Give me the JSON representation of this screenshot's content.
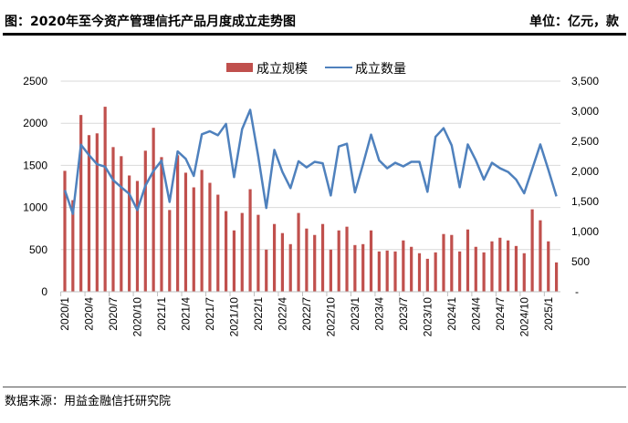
{
  "header": {
    "title": "图：2020年至今资产管理信托产品月度成立走势图",
    "unit": "单位：亿元，款"
  },
  "footer": {
    "source": "数据来源：用益金融信托研究院"
  },
  "colors": {
    "bar": "#C0504D",
    "line": "#4F81BD",
    "grid": "#D9D9D9"
  },
  "chart_data": {
    "type": "bar+line",
    "legend_position": "top",
    "grid": true,
    "categories": [
      "2020/1",
      "2020/2",
      "2020/3",
      "2020/4",
      "2020/5",
      "2020/6",
      "2020/7",
      "2020/8",
      "2020/9",
      "2020/10",
      "2020/11",
      "2020/12",
      "2021/1",
      "2021/2",
      "2021/3",
      "2021/4",
      "2021/5",
      "2021/6",
      "2021/7",
      "2021/8",
      "2021/9",
      "2021/10",
      "2021/11",
      "2021/12",
      "2022/1",
      "2022/2",
      "2022/3",
      "2022/4",
      "2022/5",
      "2022/6",
      "2022/7",
      "2022/8",
      "2022/9",
      "2022/10",
      "2022/11",
      "2022/12",
      "2023/1",
      "2023/2",
      "2023/3",
      "2023/4",
      "2023/5",
      "2023/6",
      "2023/7",
      "2023/8",
      "2023/9",
      "2023/10",
      "2023/11",
      "2023/12",
      "2024/1",
      "2024/2",
      "2024/3",
      "2024/4",
      "2024/5",
      "2024/6",
      "2024/7",
      "2024/8",
      "2024/9",
      "2024/10",
      "2024/11",
      "2024/12",
      "2025/1",
      "2025/2"
    ],
    "tick_labels": [
      "2020/1",
      "2020/4",
      "2020/7",
      "2020/10",
      "2021/1",
      "2021/4",
      "2021/7",
      "2021/10",
      "2022/1",
      "2022/4",
      "2022/7",
      "2022/10",
      "2023/1",
      "2023/4",
      "2023/7",
      "2023/10",
      "2024/1",
      "2024/4",
      "2024/7",
      "2024/10",
      "2025/1"
    ],
    "left_axis": {
      "ylim": [
        0,
        2500
      ],
      "ticks": [
        "0",
        "500",
        "1000",
        "1500",
        "2000",
        "2500"
      ]
    },
    "right_axis": {
      "ylim": [
        0,
        3500
      ],
      "ticks": [
        "-",
        "500",
        "1,000",
        "1,500",
        "2,000",
        "2,500",
        "3,000",
        "3,500"
      ]
    },
    "series": [
      {
        "name": "成立规模",
        "type": "bar",
        "axis": "left",
        "values": [
          1435,
          1087,
          2098,
          1859,
          1880,
          2196,
          1717,
          1609,
          1380,
          1315,
          1674,
          1946,
          1598,
          970,
          1620,
          1413,
          1239,
          1446,
          1293,
          1152,
          957,
          728,
          935,
          1217,
          913,
          500,
          804,
          696,
          565,
          935,
          750,
          674,
          804,
          500,
          728,
          772,
          554,
          565,
          728,
          478,
          489,
          478,
          609,
          533,
          457,
          391,
          467,
          685,
          674,
          478,
          739,
          533,
          467,
          598,
          641,
          609,
          543,
          457,
          978,
          848,
          598,
          348
        ]
      },
      {
        "name": "成立数量",
        "type": "line",
        "axis": "right",
        "values": [
          1687,
          1295,
          2443,
          2271,
          2118,
          2078,
          1854,
          1737,
          1626,
          1356,
          1763,
          2007,
          2179,
          1493,
          2332,
          2210,
          1925,
          2616,
          2667,
          2601,
          2789,
          1905,
          2703,
          3023,
          2250,
          1392,
          2357,
          1991,
          1722,
          2169,
          2067,
          2159,
          2134,
          1600,
          2413,
          2459,
          1651,
          2118,
          2611,
          2184,
          2052,
          2143,
          2083,
          2159,
          2159,
          1661,
          2575,
          2718,
          2433,
          1737,
          2448,
          2184,
          1864,
          2143,
          2052,
          1991,
          1864,
          1636,
          2042,
          2448,
          2027,
          1585
        ]
      }
    ]
  }
}
